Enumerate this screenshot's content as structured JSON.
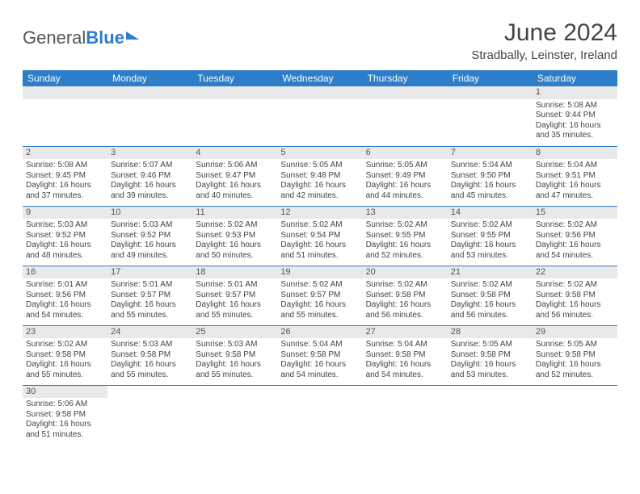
{
  "brand": {
    "part1": "General",
    "part2": "Blue"
  },
  "title": "June 2024",
  "location": "Stradbally, Leinster, Ireland",
  "colors": {
    "accent": "#2d7dc8",
    "stripe": "#e9e9e9",
    "text": "#444"
  },
  "weekdays": [
    "Sunday",
    "Monday",
    "Tuesday",
    "Wednesday",
    "Thursday",
    "Friday",
    "Saturday"
  ],
  "rows": [
    [
      null,
      null,
      null,
      null,
      null,
      null,
      {
        "n": "1",
        "rise": "Sunrise: 5:08 AM",
        "set": "Sunset: 9:44 PM",
        "dl": "Daylight: 16 hours and 35 minutes."
      }
    ],
    [
      {
        "n": "2",
        "rise": "Sunrise: 5:08 AM",
        "set": "Sunset: 9:45 PM",
        "dl": "Daylight: 16 hours and 37 minutes."
      },
      {
        "n": "3",
        "rise": "Sunrise: 5:07 AM",
        "set": "Sunset: 9:46 PM",
        "dl": "Daylight: 16 hours and 39 minutes."
      },
      {
        "n": "4",
        "rise": "Sunrise: 5:06 AM",
        "set": "Sunset: 9:47 PM",
        "dl": "Daylight: 16 hours and 40 minutes."
      },
      {
        "n": "5",
        "rise": "Sunrise: 5:05 AM",
        "set": "Sunset: 9:48 PM",
        "dl": "Daylight: 16 hours and 42 minutes."
      },
      {
        "n": "6",
        "rise": "Sunrise: 5:05 AM",
        "set": "Sunset: 9:49 PM",
        "dl": "Daylight: 16 hours and 44 minutes."
      },
      {
        "n": "7",
        "rise": "Sunrise: 5:04 AM",
        "set": "Sunset: 9:50 PM",
        "dl": "Daylight: 16 hours and 45 minutes."
      },
      {
        "n": "8",
        "rise": "Sunrise: 5:04 AM",
        "set": "Sunset: 9:51 PM",
        "dl": "Daylight: 16 hours and 47 minutes."
      }
    ],
    [
      {
        "n": "9",
        "rise": "Sunrise: 5:03 AM",
        "set": "Sunset: 9:52 PM",
        "dl": "Daylight: 16 hours and 48 minutes."
      },
      {
        "n": "10",
        "rise": "Sunrise: 5:03 AM",
        "set": "Sunset: 9:52 PM",
        "dl": "Daylight: 16 hours and 49 minutes."
      },
      {
        "n": "11",
        "rise": "Sunrise: 5:02 AM",
        "set": "Sunset: 9:53 PM",
        "dl": "Daylight: 16 hours and 50 minutes."
      },
      {
        "n": "12",
        "rise": "Sunrise: 5:02 AM",
        "set": "Sunset: 9:54 PM",
        "dl": "Daylight: 16 hours and 51 minutes."
      },
      {
        "n": "13",
        "rise": "Sunrise: 5:02 AM",
        "set": "Sunset: 9:55 PM",
        "dl": "Daylight: 16 hours and 52 minutes."
      },
      {
        "n": "14",
        "rise": "Sunrise: 5:02 AM",
        "set": "Sunset: 9:55 PM",
        "dl": "Daylight: 16 hours and 53 minutes."
      },
      {
        "n": "15",
        "rise": "Sunrise: 5:02 AM",
        "set": "Sunset: 9:56 PM",
        "dl": "Daylight: 16 hours and 54 minutes."
      }
    ],
    [
      {
        "n": "16",
        "rise": "Sunrise: 5:01 AM",
        "set": "Sunset: 9:56 PM",
        "dl": "Daylight: 16 hours and 54 minutes."
      },
      {
        "n": "17",
        "rise": "Sunrise: 5:01 AM",
        "set": "Sunset: 9:57 PM",
        "dl": "Daylight: 16 hours and 55 minutes."
      },
      {
        "n": "18",
        "rise": "Sunrise: 5:01 AM",
        "set": "Sunset: 9:57 PM",
        "dl": "Daylight: 16 hours and 55 minutes."
      },
      {
        "n": "19",
        "rise": "Sunrise: 5:02 AM",
        "set": "Sunset: 9:57 PM",
        "dl": "Daylight: 16 hours and 55 minutes."
      },
      {
        "n": "20",
        "rise": "Sunrise: 5:02 AM",
        "set": "Sunset: 9:58 PM",
        "dl": "Daylight: 16 hours and 56 minutes."
      },
      {
        "n": "21",
        "rise": "Sunrise: 5:02 AM",
        "set": "Sunset: 9:58 PM",
        "dl": "Daylight: 16 hours and 56 minutes."
      },
      {
        "n": "22",
        "rise": "Sunrise: 5:02 AM",
        "set": "Sunset: 9:58 PM",
        "dl": "Daylight: 16 hours and 56 minutes."
      }
    ],
    [
      {
        "n": "23",
        "rise": "Sunrise: 5:02 AM",
        "set": "Sunset: 9:58 PM",
        "dl": "Daylight: 16 hours and 55 minutes."
      },
      {
        "n": "24",
        "rise": "Sunrise: 5:03 AM",
        "set": "Sunset: 9:58 PM",
        "dl": "Daylight: 16 hours and 55 minutes."
      },
      {
        "n": "25",
        "rise": "Sunrise: 5:03 AM",
        "set": "Sunset: 9:58 PM",
        "dl": "Daylight: 16 hours and 55 minutes."
      },
      {
        "n": "26",
        "rise": "Sunrise: 5:04 AM",
        "set": "Sunset: 9:58 PM",
        "dl": "Daylight: 16 hours and 54 minutes."
      },
      {
        "n": "27",
        "rise": "Sunrise: 5:04 AM",
        "set": "Sunset: 9:58 PM",
        "dl": "Daylight: 16 hours and 54 minutes."
      },
      {
        "n": "28",
        "rise": "Sunrise: 5:05 AM",
        "set": "Sunset: 9:58 PM",
        "dl": "Daylight: 16 hours and 53 minutes."
      },
      {
        "n": "29",
        "rise": "Sunrise: 5:05 AM",
        "set": "Sunset: 9:58 PM",
        "dl": "Daylight: 16 hours and 52 minutes."
      }
    ],
    [
      {
        "n": "30",
        "rise": "Sunrise: 5:06 AM",
        "set": "Sunset: 9:58 PM",
        "dl": "Daylight: 16 hours and 51 minutes."
      },
      null,
      null,
      null,
      null,
      null,
      null
    ]
  ]
}
